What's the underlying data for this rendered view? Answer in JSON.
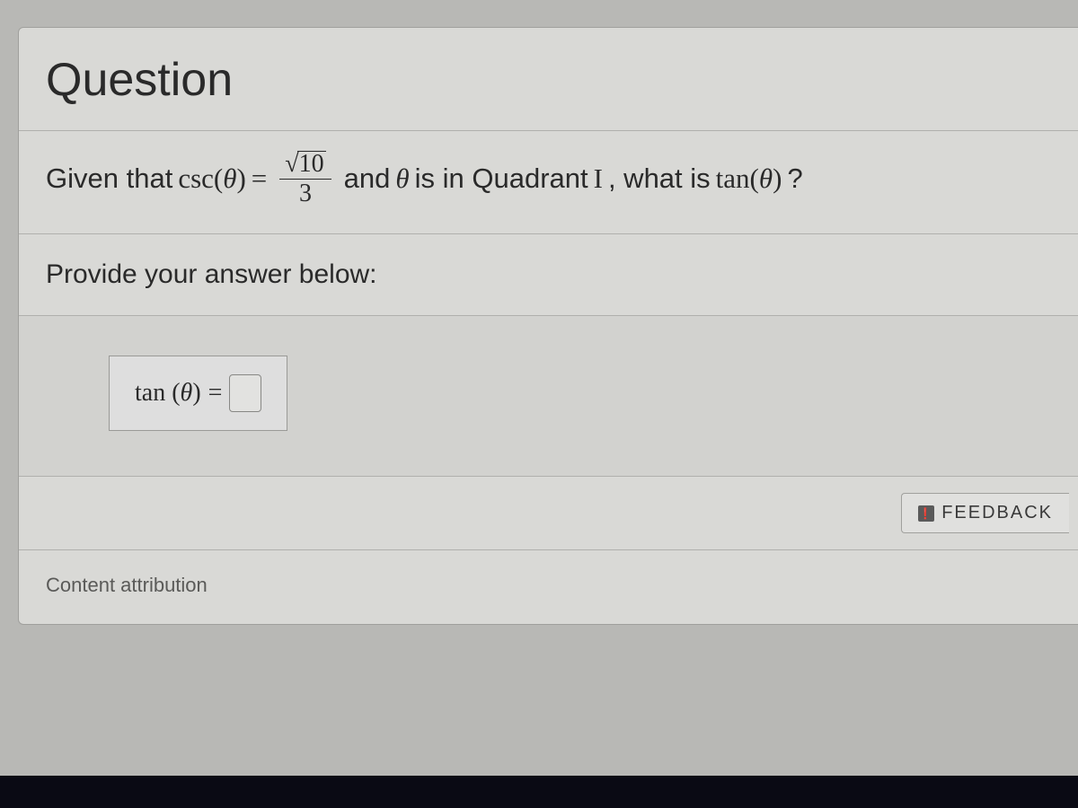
{
  "heading": "Question",
  "question": {
    "prefix": "Given that ",
    "func": "csc",
    "theta": "θ",
    "equals": " = ",
    "frac_num_sqrt": "10",
    "frac_den": "3",
    "mid": " and ",
    "mid2": " is in Quadrant ",
    "quadrant": "I",
    "tail": ", what is ",
    "tail_func": "tan",
    "tail_end": "?"
  },
  "prompt": "Provide your answer below:",
  "answer": {
    "func": "tan",
    "theta": "θ",
    "equals": "="
  },
  "feedback_label": "FEEDBACK",
  "attribution": "Content attribution",
  "colors": {
    "page_bg": "#b8b8b5",
    "card_bg": "#d9d9d6",
    "border": "#a0a09d",
    "divider": "#b0b0ad",
    "text": "#2a2a2a",
    "muted": "#5a5a58"
  }
}
